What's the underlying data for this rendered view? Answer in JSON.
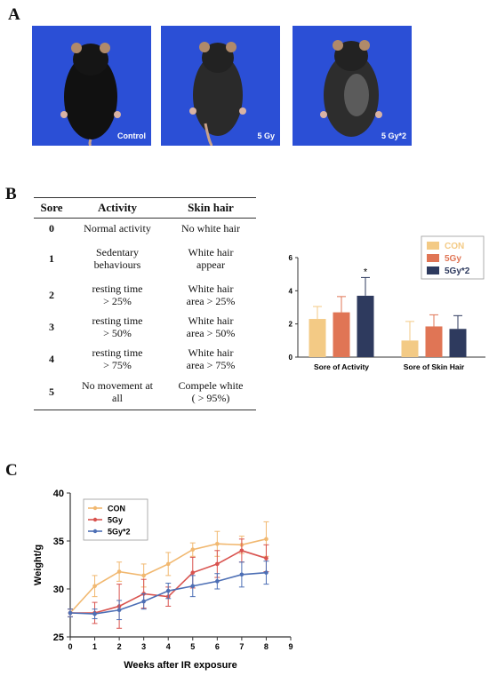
{
  "panels": {
    "a": "A",
    "b": "B",
    "c": "C"
  },
  "photos": [
    {
      "label": "Control"
    },
    {
      "label": "5 Gy"
    },
    {
      "label": "5 Gy*2"
    }
  ],
  "score_table": {
    "headers": [
      "Sore",
      "Activity",
      "Skin hair"
    ],
    "rows": [
      {
        "score": "0",
        "activity": [
          "Normal activity"
        ],
        "skin": [
          "No white hair"
        ]
      },
      {
        "score": "1",
        "activity": [
          "Sedentary",
          "behaviours"
        ],
        "skin": [
          "White hair",
          "appear"
        ]
      },
      {
        "score": "2",
        "activity": [
          "resting time",
          "> 25%"
        ],
        "skin": [
          "White hair",
          "area > 25%"
        ]
      },
      {
        "score": "3",
        "activity": [
          "resting time",
          "> 50%"
        ],
        "skin": [
          "White hair",
          "area > 50%"
        ]
      },
      {
        "score": "4",
        "activity": [
          "resting time",
          "> 75%"
        ],
        "skin": [
          "White hair",
          "area > 75%"
        ]
      },
      {
        "score": "5",
        "activity": [
          "No movement at",
          "all"
        ],
        "skin": [
          "Compele white",
          "( > 95%)"
        ]
      }
    ]
  },
  "chart_data": [
    {
      "type": "bar",
      "categories": [
        "Sore of Activity",
        "Sore of Skin Hair"
      ],
      "series": [
        {
          "name": "CON",
          "color": "#f3ca85",
          "values": [
            2.3,
            1.0
          ],
          "errors": [
            0.75,
            1.15
          ]
        },
        {
          "name": "5Gy",
          "color": "#e07555",
          "values": [
            2.7,
            1.85
          ],
          "errors": [
            0.95,
            0.7
          ]
        },
        {
          "name": "5Gy*2",
          "color": "#2e3a5e",
          "values": [
            3.7,
            1.7
          ],
          "errors": [
            1.1,
            0.8
          ]
        }
      ],
      "ylim": [
        0,
        6
      ],
      "yticks": [
        0,
        2,
        4,
        6
      ],
      "annotations": [
        {
          "text": "*",
          "category": 0,
          "series": 2
        }
      ],
      "legend": "top-right"
    },
    {
      "type": "line",
      "x": [
        0,
        1,
        2,
        3,
        4,
        5,
        6,
        7,
        8
      ],
      "series": [
        {
          "name": "CON",
          "color": "#f1b870",
          "values": [
            27.5,
            30.3,
            31.8,
            31.4,
            32.6,
            34.1,
            34.7,
            34.6,
            35.2
          ],
          "errors": [
            0.4,
            1.1,
            1.0,
            1.2,
            1.2,
            0.7,
            1.3,
            0.9,
            1.8
          ]
        },
        {
          "name": "5Gy",
          "color": "#d9534f",
          "values": [
            27.5,
            27.5,
            28.2,
            29.5,
            29.2,
            31.7,
            32.6,
            34.0,
            33.2
          ],
          "errors": [
            0.4,
            1.1,
            2.3,
            1.5,
            1.0,
            1.6,
            1.4,
            1.2,
            1.4
          ]
        },
        {
          "name": "5Gy*2",
          "color": "#4d6fb5",
          "values": [
            27.5,
            27.4,
            27.8,
            28.7,
            29.8,
            30.3,
            30.8,
            31.5,
            31.7
          ],
          "errors": [
            0.4,
            0.5,
            1.0,
            0.8,
            0.8,
            1.1,
            0.8,
            1.3,
            1.2
          ]
        }
      ],
      "xlim": [
        0,
        9
      ],
      "ylim": [
        25,
        40
      ],
      "xticks": [
        0,
        1,
        2,
        3,
        4,
        5,
        6,
        7,
        8,
        9
      ],
      "yticks": [
        25,
        30,
        35,
        40
      ],
      "xlabel": "Weeks after IR exposure",
      "ylabel": "Weight/g",
      "legend": "top-left"
    }
  ]
}
